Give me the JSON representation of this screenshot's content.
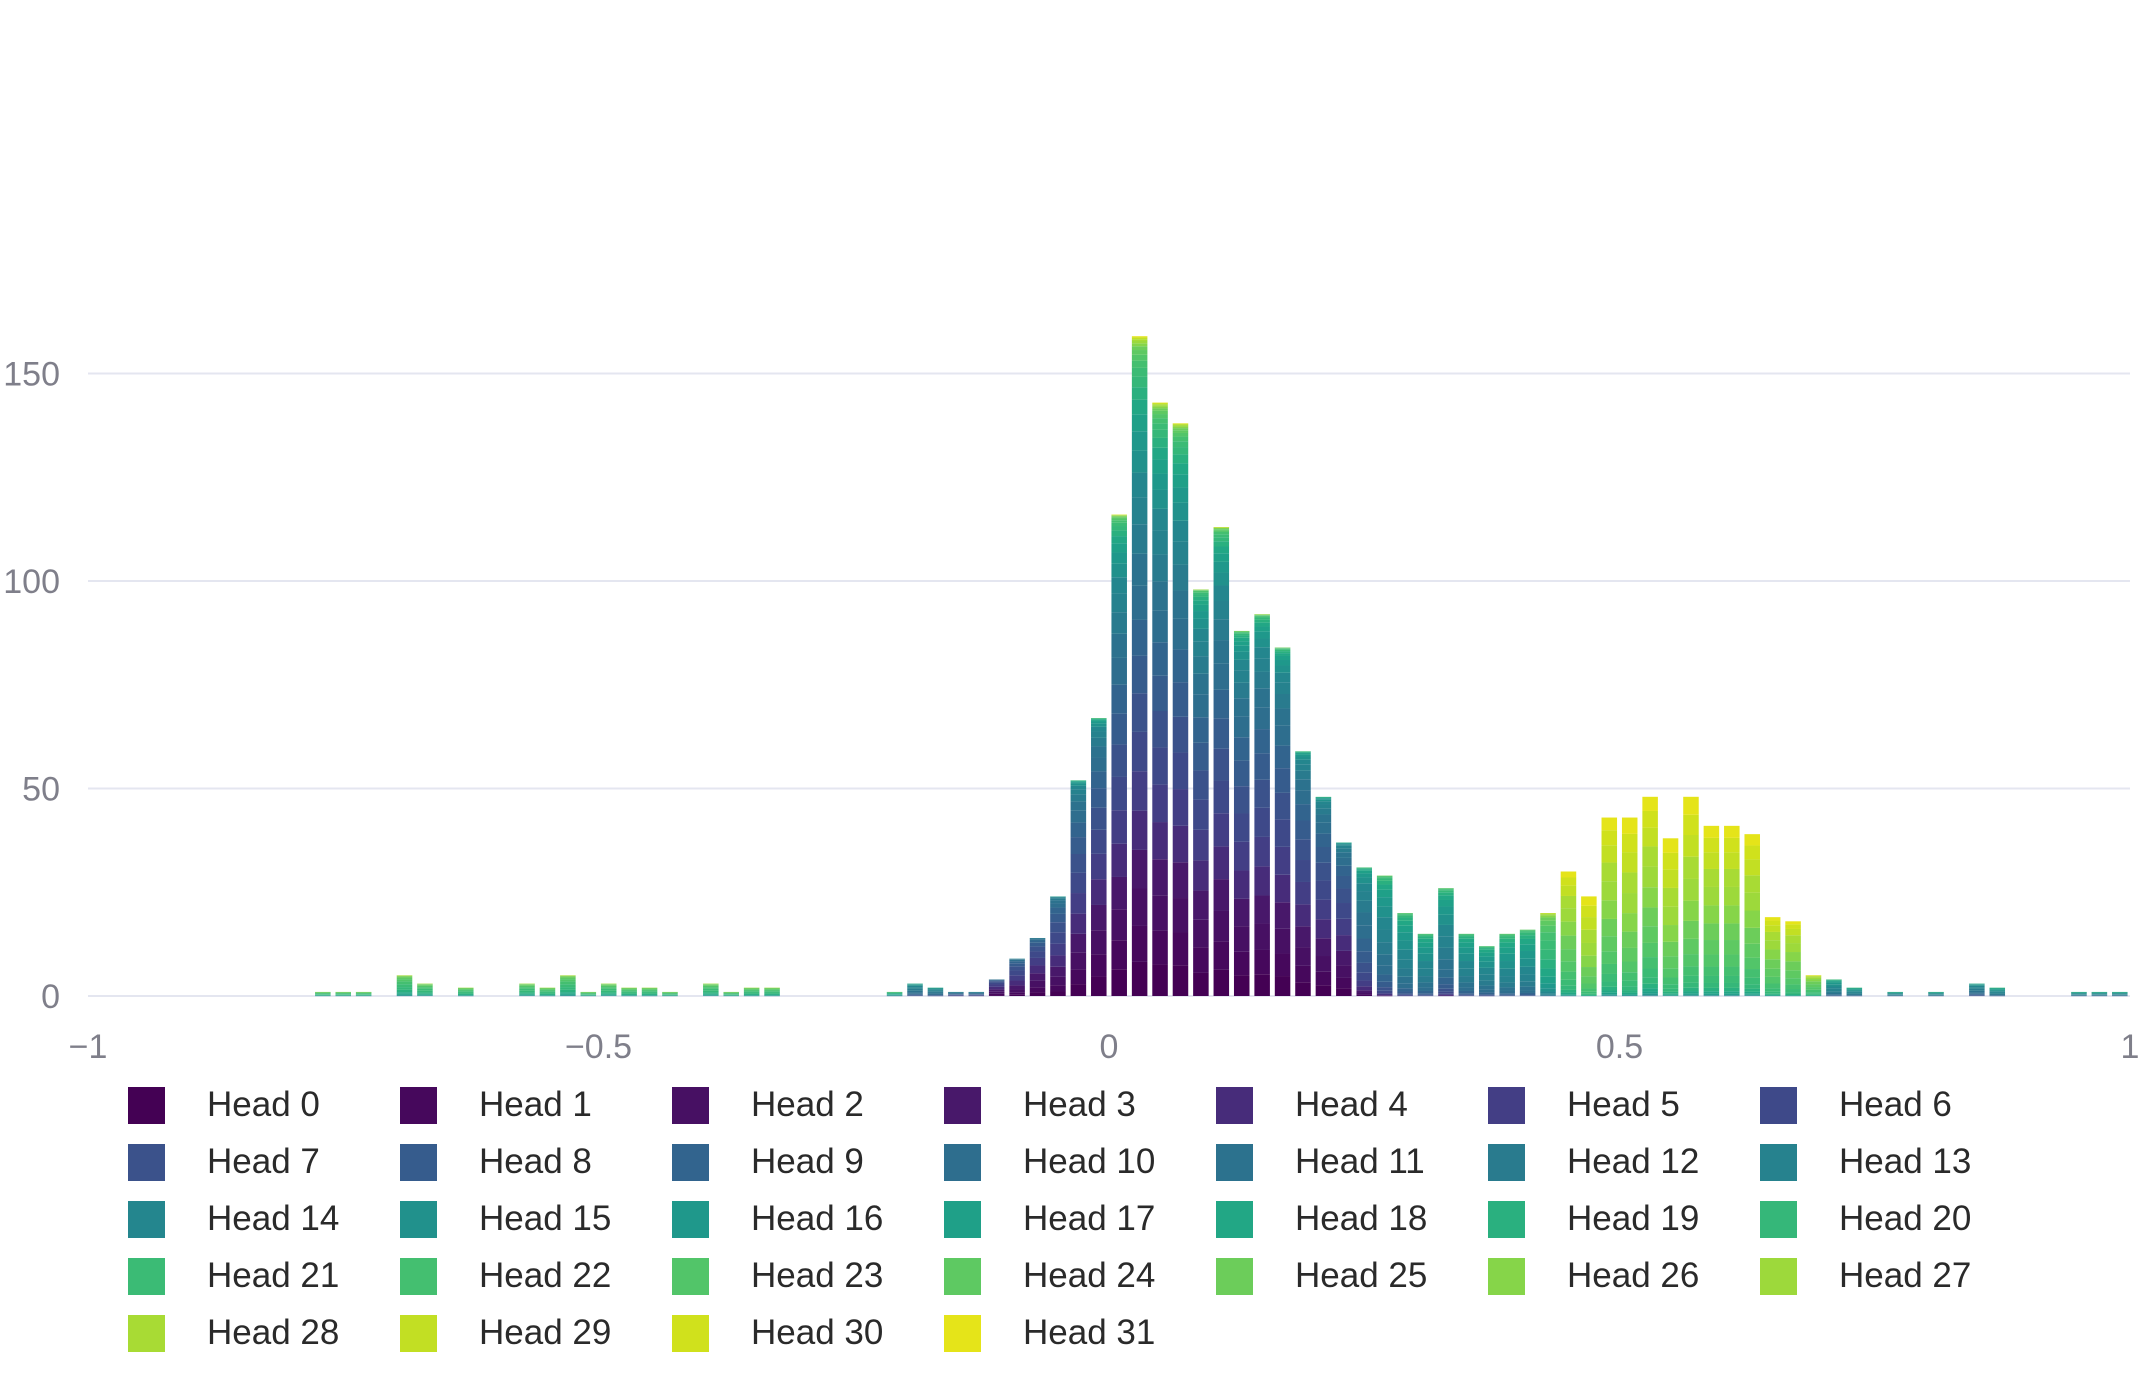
{
  "chart_data": {
    "type": "bar",
    "stacked": true,
    "grid": true,
    "legend_position": "bottom",
    "xlim": [
      -1,
      1
    ],
    "ylim": [
      0,
      170
    ],
    "x_ticks": [
      {
        "value": -1,
        "label": "−1"
      },
      {
        "value": -0.5,
        "label": "−0.5"
      },
      {
        "value": 0,
        "label": "0"
      },
      {
        "value": 0.5,
        "label": "0.5"
      },
      {
        "value": 1,
        "label": "1"
      }
    ],
    "y_ticks": [
      {
        "value": 0,
        "label": "0"
      },
      {
        "value": 50,
        "label": "50"
      },
      {
        "value": 100,
        "label": "100"
      },
      {
        "value": 150,
        "label": "150"
      }
    ],
    "bin_width": 0.02,
    "x": [
      -0.77,
      -0.75,
      -0.73,
      -0.69,
      -0.67,
      -0.63,
      -0.57,
      -0.55,
      -0.53,
      -0.51,
      -0.49,
      -0.47,
      -0.45,
      -0.43,
      -0.39,
      -0.37,
      -0.35,
      -0.33,
      -0.21,
      -0.19,
      -0.17,
      -0.15,
      -0.13,
      -0.11,
      -0.09,
      -0.07,
      -0.05,
      -0.03,
      -0.01,
      0.01,
      0.03,
      0.05,
      0.07,
      0.09,
      0.11,
      0.13,
      0.15,
      0.17,
      0.19,
      0.21,
      0.23,
      0.25,
      0.27,
      0.29,
      0.31,
      0.33,
      0.35,
      0.37,
      0.39,
      0.41,
      0.43,
      0.45,
      0.47,
      0.49,
      0.51,
      0.53,
      0.55,
      0.57,
      0.59,
      0.61,
      0.63,
      0.65,
      0.67,
      0.69,
      0.71,
      0.73,
      0.77,
      0.81,
      0.85,
      0.87,
      0.95,
      0.97,
      0.99
    ],
    "totals": [
      1,
      1,
      1,
      5,
      3,
      2,
      3,
      2,
      5,
      1,
      3,
      2,
      2,
      1,
      3,
      1,
      2,
      2,
      1,
      3,
      2,
      1,
      1,
      4,
      9,
      14,
      24,
      52,
      67,
      116,
      159,
      143,
      138,
      98,
      113,
      88,
      92,
      84,
      59,
      48,
      37,
      31,
      29,
      20,
      15,
      26,
      15,
      12,
      15,
      16,
      20,
      30,
      24,
      43,
      43,
      48,
      38,
      48,
      41,
      41,
      39,
      19,
      18,
      5,
      4,
      2,
      1,
      1,
      3,
      2,
      1,
      1,
      1
    ],
    "peak_head": [
      21,
      21,
      21,
      21,
      21,
      21,
      21,
      21,
      21,
      21,
      21,
      21,
      21,
      21,
      21,
      21,
      21,
      21,
      18,
      12,
      12,
      9,
      9,
      4,
      5,
      4,
      5,
      5,
      4,
      5,
      5,
      5,
      5,
      5,
      5,
      5,
      5,
      5,
      5,
      5,
      5,
      10,
      13,
      14,
      14,
      13,
      14,
      14,
      15,
      15,
      20,
      26,
      28,
      27,
      28,
      27,
      28,
      28,
      27,
      27,
      27,
      26,
      26,
      24,
      14,
      14,
      14,
      14,
      12,
      14,
      14,
      14,
      14
    ],
    "series": [
      {
        "name": "Head 0",
        "color": "#440154"
      },
      {
        "name": "Head 1",
        "color": "#46085c"
      },
      {
        "name": "Head 2",
        "color": "#471063"
      },
      {
        "name": "Head 3",
        "color": "#48186a"
      },
      {
        "name": "Head 4",
        "color": "#472c7a"
      },
      {
        "name": "Head 5",
        "color": "#433e85"
      },
      {
        "name": "Head 6",
        "color": "#3e4989"
      },
      {
        "name": "Head 7",
        "color": "#3b528b"
      },
      {
        "name": "Head 8",
        "color": "#365c8d"
      },
      {
        "name": "Head 9",
        "color": "#32648e"
      },
      {
        "name": "Head 10",
        "color": "#2e6e8e"
      },
      {
        "name": "Head 11",
        "color": "#2c728e"
      },
      {
        "name": "Head 12",
        "color": "#297b8e"
      },
      {
        "name": "Head 13",
        "color": "#26828e"
      },
      {
        "name": "Head 14",
        "color": "#24868e"
      },
      {
        "name": "Head 15",
        "color": "#21918c"
      },
      {
        "name": "Head 16",
        "color": "#1f988b"
      },
      {
        "name": "Head 17",
        "color": "#1fa088"
      },
      {
        "name": "Head 18",
        "color": "#22a785"
      },
      {
        "name": "Head 19",
        "color": "#2ab07f"
      },
      {
        "name": "Head 20",
        "color": "#35b779"
      },
      {
        "name": "Head 21",
        "color": "#3bbb75"
      },
      {
        "name": "Head 22",
        "color": "#44bf70"
      },
      {
        "name": "Head 23",
        "color": "#52c569"
      },
      {
        "name": "Head 24",
        "color": "#5ec962"
      },
      {
        "name": "Head 25",
        "color": "#6ccd5a"
      },
      {
        "name": "Head 26",
        "color": "#86d549"
      },
      {
        "name": "Head 27",
        "color": "#9dd93b"
      },
      {
        "name": "Head 28",
        "color": "#a8db34"
      },
      {
        "name": "Head 29",
        "color": "#c2df23"
      },
      {
        "name": "Head 30",
        "color": "#d0e11c"
      },
      {
        "name": "Head 31",
        "color": "#e5e419"
      }
    ]
  }
}
